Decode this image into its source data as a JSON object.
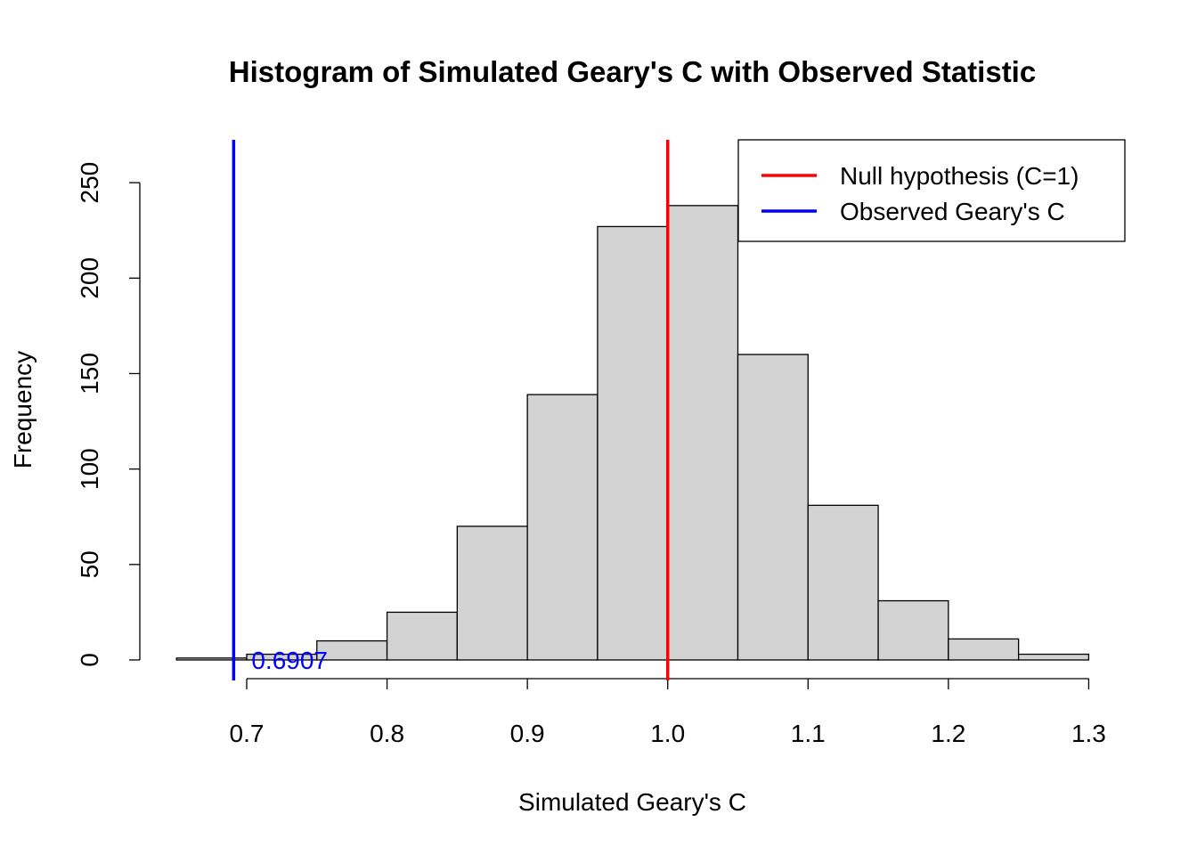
{
  "chart_data": {
    "type": "bar",
    "title": "Histogram of Simulated Geary's C with Observed Statistic",
    "xlabel": "Simulated Geary's C",
    "ylabel": "Frequency",
    "xlim": [
      0.6,
      1.3
    ],
    "ylim": [
      0,
      260
    ],
    "x_ticks": [
      "0.7",
      "0.8",
      "0.9",
      "1.0",
      "1.1",
      "1.2",
      "1.3"
    ],
    "y_ticks": [
      "0",
      "50",
      "100",
      "150",
      "200",
      "250"
    ],
    "bins": [
      {
        "start": 0.65,
        "end": 0.7,
        "count": 1
      },
      {
        "start": 0.7,
        "end": 0.75,
        "count": 3
      },
      {
        "start": 0.75,
        "end": 0.8,
        "count": 10
      },
      {
        "start": 0.8,
        "end": 0.85,
        "count": 25
      },
      {
        "start": 0.85,
        "end": 0.9,
        "count": 70
      },
      {
        "start": 0.9,
        "end": 0.95,
        "count": 139
      },
      {
        "start": 0.95,
        "end": 1.0,
        "count": 227
      },
      {
        "start": 1.0,
        "end": 1.05,
        "count": 238
      },
      {
        "start": 1.05,
        "end": 1.1,
        "count": 160
      },
      {
        "start": 1.1,
        "end": 1.15,
        "count": 81
      },
      {
        "start": 1.15,
        "end": 1.2,
        "count": 31
      },
      {
        "start": 1.2,
        "end": 1.25,
        "count": 11
      },
      {
        "start": 1.25,
        "end": 1.3,
        "count": 3
      }
    ],
    "vlines": [
      {
        "name": "Null hypothesis (C=1)",
        "x": 1.0,
        "color": "#ff0000"
      },
      {
        "name": "Observed Geary's C",
        "x": 0.6907,
        "color": "#0000ff"
      }
    ],
    "annotations": [
      {
        "text": "0.6907",
        "x": 0.6907,
        "y": 0,
        "color": "#0000ff"
      }
    ],
    "legend": {
      "placement": "top-right",
      "items": [
        {
          "label": "Null hypothesis (C=1)",
          "color": "#ff0000"
        },
        {
          "label": "Observed Geary's C",
          "color": "#0000ff"
        }
      ]
    },
    "bar_fill": "#d3d3d3",
    "bar_stroke": "#000000"
  }
}
